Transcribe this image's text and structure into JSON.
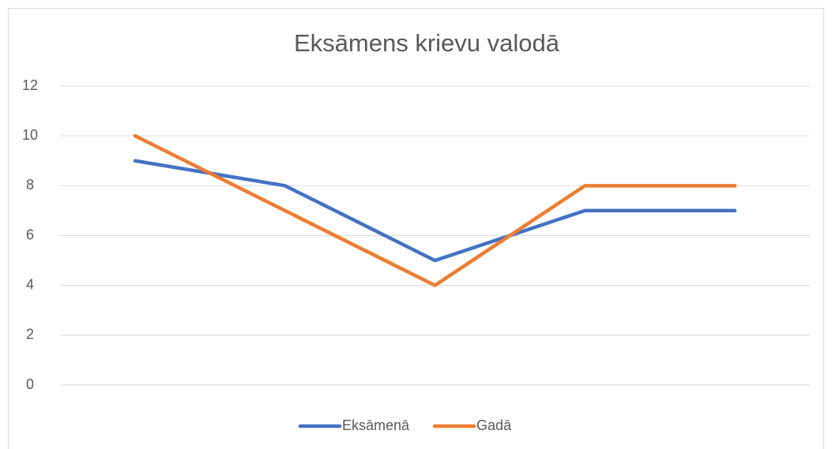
{
  "chart_data": {
    "type": "line",
    "title": "Eksāmens krievu valodā",
    "categories": [
      null,
      null,
      null,
      null,
      null
    ],
    "series": [
      {
        "name": "Eksāmenā",
        "color": "#4472c4",
        "values": [
          9,
          8,
          5,
          7,
          7
        ]
      },
      {
        "name": "Gadā",
        "color": "#ed7d31",
        "values": [
          10,
          7,
          4,
          8,
          8
        ]
      }
    ],
    "ylim": [
      0,
      12
    ],
    "yticks": [
      0,
      2,
      4,
      6,
      8,
      10,
      12
    ],
    "grid": true,
    "legend": "bottom"
  }
}
